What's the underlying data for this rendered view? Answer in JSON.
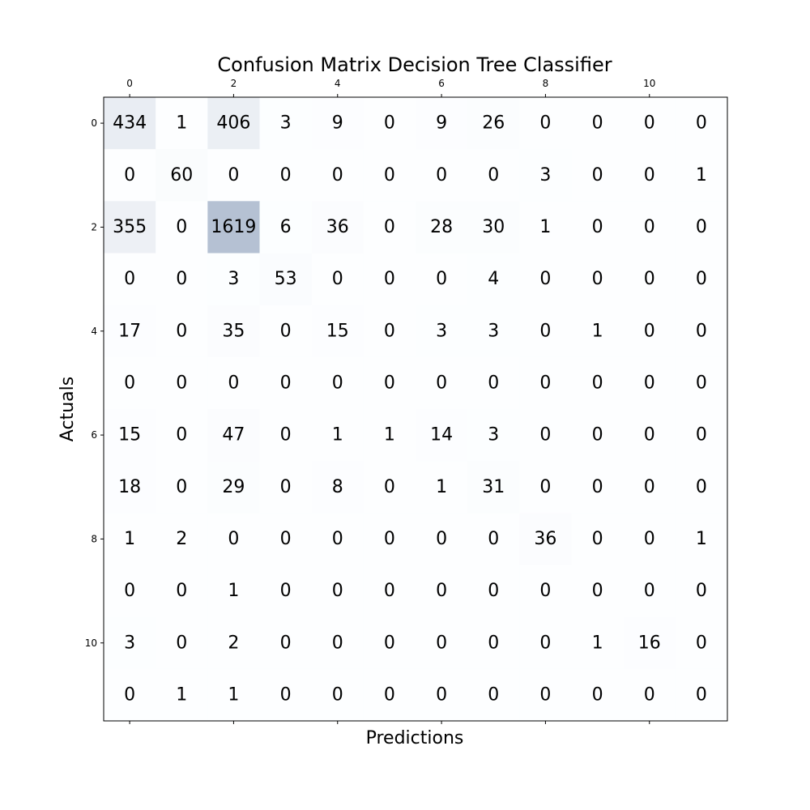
{
  "chart_data": {
    "type": "heatmap",
    "title": "Confusion Matrix Decision Tree Classifier",
    "xlabel": "Predictions",
    "ylabel": "Actuals",
    "x_tick_labels": [
      "0",
      "2",
      "4",
      "6",
      "8",
      "10"
    ],
    "y_tick_labels": [
      "0",
      "2",
      "4",
      "6",
      "8",
      "10"
    ],
    "tick_step": 2,
    "x_ticks_position": "top",
    "colormap": {
      "low": "#f7fbff",
      "high": "#08306b",
      "alpha": 0.3
    },
    "vmax": 1619,
    "grid": false,
    "matrix": [
      [
        434,
        1,
        406,
        3,
        9,
        0,
        9,
        26,
        0,
        0,
        0,
        0
      ],
      [
        0,
        60,
        0,
        0,
        0,
        0,
        0,
        0,
        3,
        0,
        0,
        1
      ],
      [
        355,
        0,
        1619,
        6,
        36,
        0,
        28,
        30,
        1,
        0,
        0,
        0
      ],
      [
        0,
        0,
        3,
        53,
        0,
        0,
        0,
        4,
        0,
        0,
        0,
        0
      ],
      [
        17,
        0,
        35,
        0,
        15,
        0,
        3,
        3,
        0,
        1,
        0,
        0
      ],
      [
        0,
        0,
        0,
        0,
        0,
        0,
        0,
        0,
        0,
        0,
        0,
        0
      ],
      [
        15,
        0,
        47,
        0,
        1,
        1,
        14,
        3,
        0,
        0,
        0,
        0
      ],
      [
        18,
        0,
        29,
        0,
        8,
        0,
        1,
        31,
        0,
        0,
        0,
        0
      ],
      [
        1,
        2,
        0,
        0,
        0,
        0,
        0,
        0,
        36,
        0,
        0,
        1
      ],
      [
        0,
        0,
        1,
        0,
        0,
        0,
        0,
        0,
        0,
        0,
        0,
        0
      ],
      [
        3,
        0,
        2,
        0,
        0,
        0,
        0,
        0,
        0,
        1,
        16,
        0
      ],
      [
        0,
        1,
        1,
        0,
        0,
        0,
        0,
        0,
        0,
        0,
        0,
        0
      ]
    ]
  }
}
